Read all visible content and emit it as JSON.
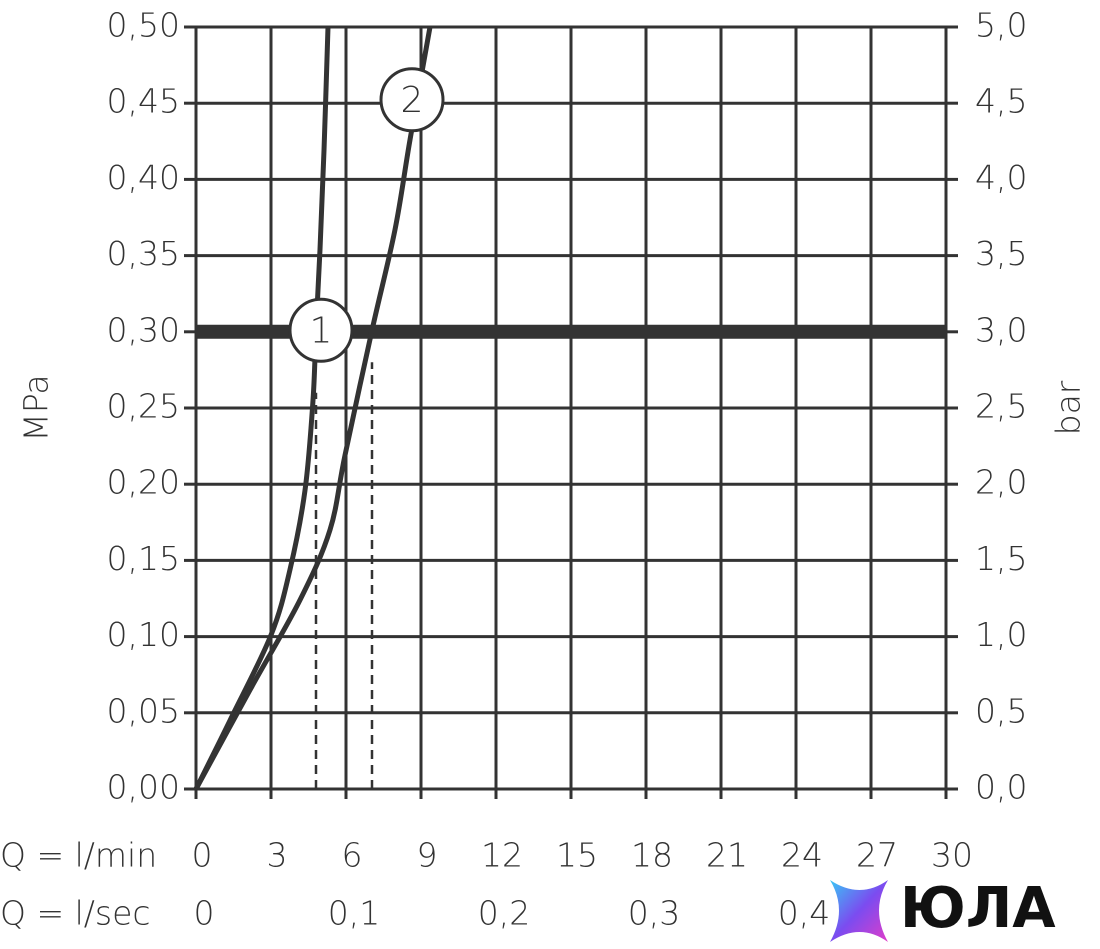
{
  "chart_data": {
    "type": "line",
    "xlabel": "Q = l/min",
    "x2label": "Q = l/sec",
    "ylabel": "MPa",
    "y2label": "bar",
    "xlim": [
      0,
      30
    ],
    "xticks": [
      0,
      3,
      6,
      9,
      12,
      15,
      18,
      21,
      24,
      27,
      30
    ],
    "x2lim": [
      0,
      0.5
    ],
    "x2ticks": [
      {
        "value": 0,
        "label": "0"
      },
      {
        "value": 0.1,
        "label": "0,1"
      },
      {
        "value": 0.2,
        "label": "0,2"
      },
      {
        "value": 0.3,
        "label": "0,3"
      },
      {
        "value": 0.4,
        "label": "0,4"
      }
    ],
    "ylim": [
      0,
      0.5
    ],
    "yticks": [
      {
        "value": 0,
        "label": "0,00"
      },
      {
        "value": 0.05,
        "label": "0,05"
      },
      {
        "value": 0.1,
        "label": "0,10"
      },
      {
        "value": 0.15,
        "label": "0,15"
      },
      {
        "value": 0.2,
        "label": "0,20"
      },
      {
        "value": 0.25,
        "label": "0,25"
      },
      {
        "value": 0.3,
        "label": "0,30"
      },
      {
        "value": 0.35,
        "label": "0,35"
      },
      {
        "value": 0.4,
        "label": "0,40"
      },
      {
        "value": 0.45,
        "label": "0,45"
      },
      {
        "value": 0.5,
        "label": "0,50"
      }
    ],
    "y2lim": [
      0,
      5
    ],
    "y2ticks": [
      {
        "value": 0,
        "label": "0,0"
      },
      {
        "value": 0.5,
        "label": "0,5"
      },
      {
        "value": 1,
        "label": "1,0"
      },
      {
        "value": 1.5,
        "label": "1,5"
      },
      {
        "value": 2,
        "label": "2,0"
      },
      {
        "value": 2.5,
        "label": "2,5"
      },
      {
        "value": 3,
        "label": "3,0"
      },
      {
        "value": 3.5,
        "label": "3,5"
      },
      {
        "value": 4,
        "label": "4,0"
      },
      {
        "value": 4.5,
        "label": "4,5"
      },
      {
        "value": 5,
        "label": "5,0"
      }
    ],
    "grid": true,
    "reference_line": 0.3,
    "drop_lines": [
      {
        "x": 4.8,
        "y": 0.26
      },
      {
        "x": 7.04,
        "y": 0.28
      }
    ],
    "series": [
      {
        "name": "1",
        "color": "#333333",
        "x": [
          0,
          1.36,
          3,
          3.76,
          4.36,
          4.68,
          4.8,
          4.96,
          5.12,
          5.28
        ],
        "values": [
          0,
          0.045,
          0.101,
          0.144,
          0.196,
          0.255,
          0.301,
          0.354,
          0.419,
          0.5
        ]
      },
      {
        "name": "2",
        "color": "#333333",
        "x": [
          0,
          2.16,
          4.16,
          5.36,
          5.96,
          7.04,
          7.96,
          8.56,
          9.36
        ],
        "values": [
          0,
          0.065,
          0.124,
          0.17,
          0.219,
          0.301,
          0.367,
          0.426,
          0.5
        ]
      }
    ]
  },
  "watermark": "ЮЛА"
}
